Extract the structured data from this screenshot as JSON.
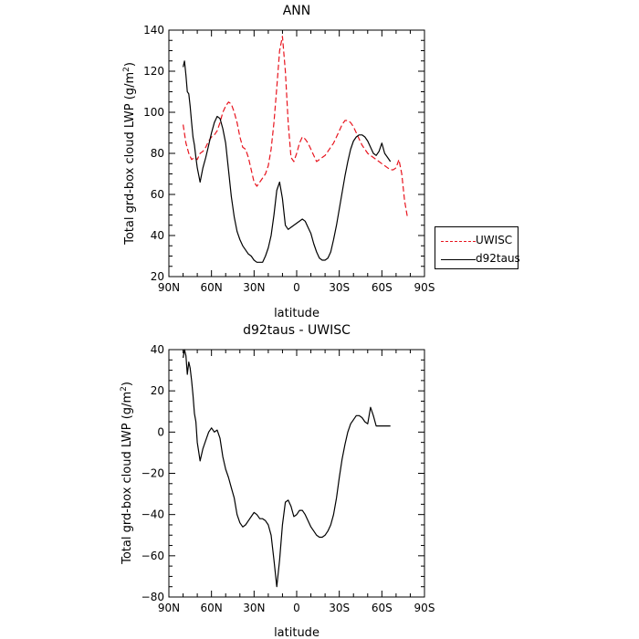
{
  "chart_data": [
    {
      "type": "line",
      "title": "ANN",
      "xlabel": "latitude",
      "ylabel": "Total grd-box cloud LWP (g/m",
      "ylabel_sup": "2",
      "ylabel_close": ")",
      "xlim": [
        90,
        -90
      ],
      "ylim": [
        20,
        140
      ],
      "xticks": [
        90,
        60,
        30,
        0,
        -30,
        -60,
        -90
      ],
      "xtick_labels": [
        "90N",
        "60N",
        "30N",
        "0",
        "30S",
        "60S",
        "90S"
      ],
      "yticks": [
        20,
        40,
        60,
        80,
        100,
        120,
        140
      ],
      "ytick_labels": [
        "20",
        "40",
        "60",
        "80",
        "100",
        "120",
        "140"
      ],
      "legend": "right",
      "grid": false,
      "series": [
        {
          "name": "UWISC",
          "color": "#e8141e",
          "style": "dashed",
          "x": [
            80,
            78,
            76,
            74,
            72,
            70,
            68,
            66,
            64,
            62,
            60,
            58,
            56,
            54,
            52,
            50,
            48,
            46,
            44,
            42,
            40,
            38,
            36,
            34,
            32,
            30,
            28,
            26,
            24,
            22,
            20,
            18,
            16,
            14,
            12,
            10,
            8,
            6,
            4,
            2,
            0,
            -2,
            -4,
            -6,
            -8,
            -10,
            -12,
            -14,
            -16,
            -18,
            -20,
            -22,
            -24,
            -26,
            -28,
            -30,
            -32,
            -34,
            -36,
            -38,
            -40,
            -42,
            -44,
            -46,
            -48,
            -50,
            -52,
            -54,
            -56,
            -58,
            -60,
            -62,
            -64,
            -66,
            -68,
            -70,
            -72,
            -74,
            -76,
            -78
          ],
          "y": [
            94,
            85,
            80,
            77,
            78,
            77,
            80,
            81,
            83,
            86,
            88,
            89,
            91,
            95,
            100,
            103,
            105,
            104,
            100,
            95,
            88,
            83,
            82,
            78,
            72,
            66,
            64,
            66,
            68,
            70,
            74,
            82,
            95,
            112,
            130,
            137,
            120,
            95,
            78,
            76,
            80,
            85,
            88,
            87,
            85,
            82,
            79,
            76,
            77,
            78,
            79,
            81,
            83,
            85,
            88,
            91,
            94,
            96,
            96,
            95,
            93,
            90,
            87,
            84,
            82,
            80,
            79,
            78,
            77,
            76,
            75,
            74,
            73,
            72,
            72,
            73,
            77,
            70,
            57,
            49
          ]
        },
        {
          "name": "d92taus",
          "color": "#000000",
          "style": "solid",
          "x": [
            80,
            79,
            78,
            77,
            76,
            75,
            74,
            73,
            72,
            71,
            70,
            68,
            66,
            64,
            62,
            60,
            58,
            56,
            54,
            52,
            50,
            48,
            46,
            44,
            42,
            40,
            38,
            36,
            34,
            32,
            30,
            28,
            26,
            24,
            22,
            20,
            18,
            16,
            14,
            12,
            10,
            8,
            6,
            4,
            2,
            0,
            -2,
            -4,
            -6,
            -8,
            -10,
            -12,
            -14,
            -16,
            -18,
            -20,
            -22,
            -24,
            -26,
            -28,
            -30,
            -32,
            -34,
            -36,
            -38,
            -40,
            -42,
            -44,
            -46,
            -48,
            -50,
            -52,
            -54,
            -56,
            -58,
            -60,
            -62,
            -64,
            -66
          ],
          "y": [
            122,
            125,
            118,
            110,
            109,
            103,
            95,
            88,
            84,
            78,
            73,
            66,
            73,
            78,
            84,
            90,
            95,
            98,
            97,
            92,
            85,
            72,
            59,
            49,
            42,
            38,
            35,
            33,
            31,
            30,
            28,
            27,
            27,
            27,
            30,
            34,
            40,
            50,
            62,
            66,
            58,
            45,
            43,
            44,
            45,
            46,
            47,
            48,
            47,
            44,
            41,
            36,
            32,
            29,
            28,
            28,
            29,
            32,
            38,
            45,
            53,
            61,
            69,
            76,
            82,
            86,
            88,
            89,
            89,
            88,
            86,
            83,
            80,
            79,
            81,
            85,
            80,
            78,
            76
          ]
        }
      ]
    },
    {
      "type": "line",
      "title": "d92taus - UWISC",
      "xlabel": "latitude",
      "ylabel": "Total grd-box cloud LWP (g/m",
      "ylabel_sup": "2",
      "ylabel_close": ")",
      "xlim": [
        90,
        -90
      ],
      "ylim": [
        -80,
        40
      ],
      "xticks": [
        90,
        60,
        30,
        0,
        -30,
        -60,
        -90
      ],
      "xtick_labels": [
        "90N",
        "60N",
        "30N",
        "0",
        "30S",
        "60S",
        "90S"
      ],
      "yticks": [
        -80,
        -60,
        -40,
        -20,
        0,
        20,
        40
      ],
      "ytick_labels": [
        "−80",
        "−60",
        "−40",
        "−20",
        "0",
        "20",
        "40"
      ],
      "grid": false,
      "series": [
        {
          "color": "#000000",
          "style": "solid",
          "x": [
            80,
            79,
            78,
            77,
            76,
            75,
            74,
            73,
            72,
            71,
            70,
            68,
            66,
            64,
            62,
            60,
            58,
            56,
            54,
            52,
            50,
            48,
            46,
            44,
            42,
            40,
            38,
            36,
            34,
            32,
            30,
            28,
            26,
            24,
            22,
            20,
            18,
            16,
            14,
            12,
            10,
            8,
            6,
            4,
            2,
            0,
            -2,
            -4,
            -6,
            -8,
            -10,
            -12,
            -14,
            -16,
            -18,
            -20,
            -22,
            -24,
            -26,
            -28,
            -30,
            -32,
            -34,
            -36,
            -38,
            -40,
            -42,
            -44,
            -46,
            -48,
            -50,
            -52,
            -54,
            -56,
            -58,
            -60,
            -62,
            -64,
            -66
          ],
          "y": [
            36,
            40,
            37,
            28,
            34,
            31,
            25,
            18,
            9,
            5,
            -5,
            -14,
            -8,
            -4,
            0,
            2,
            0,
            1,
            -3,
            -12,
            -18,
            -22,
            -27,
            -32,
            -40,
            -44,
            -46,
            -45,
            -43,
            -41,
            -39,
            -40,
            -42,
            -42,
            -43,
            -45,
            -50,
            -62,
            -75,
            -62,
            -45,
            -34,
            -33,
            -36,
            -41,
            -40,
            -38,
            -38,
            -40,
            -43,
            -46,
            -48,
            -50,
            -51,
            -51,
            -50,
            -48,
            -45,
            -40,
            -32,
            -22,
            -13,
            -6,
            0,
            4,
            6,
            8,
            8,
            7,
            5,
            4,
            12,
            8,
            3,
            3,
            3,
            3,
            3,
            3
          ]
        }
      ]
    }
  ]
}
